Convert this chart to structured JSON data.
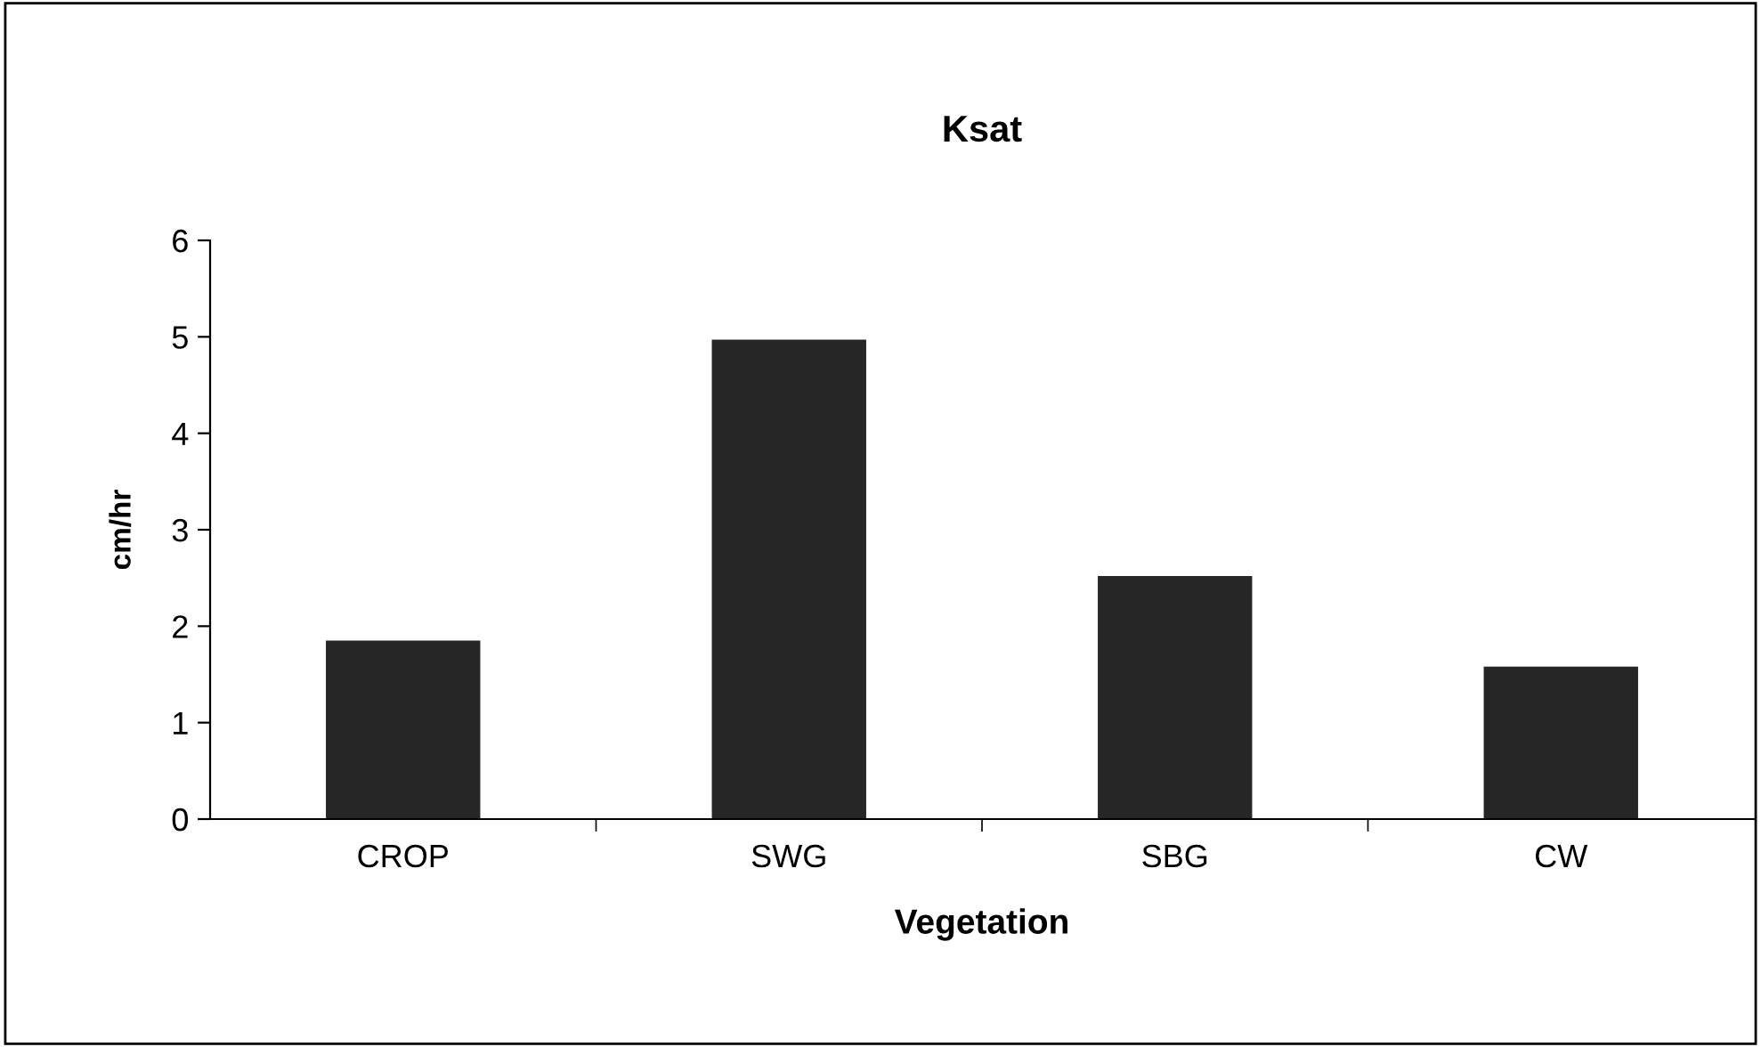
{
  "chart_data": {
    "type": "bar",
    "title": "Ksat",
    "xlabel": "Vegetation",
    "ylabel": "cm/hr",
    "categories": [
      "CROP",
      "SWG",
      "SBG",
      "CW"
    ],
    "values": [
      1.85,
      4.97,
      2.52,
      1.58
    ],
    "color": "#262626",
    "ylim": [
      0,
      6
    ],
    "yticks": [
      0,
      1,
      2,
      3,
      4,
      5,
      6
    ],
    "grid": false,
    "legend": false
  }
}
